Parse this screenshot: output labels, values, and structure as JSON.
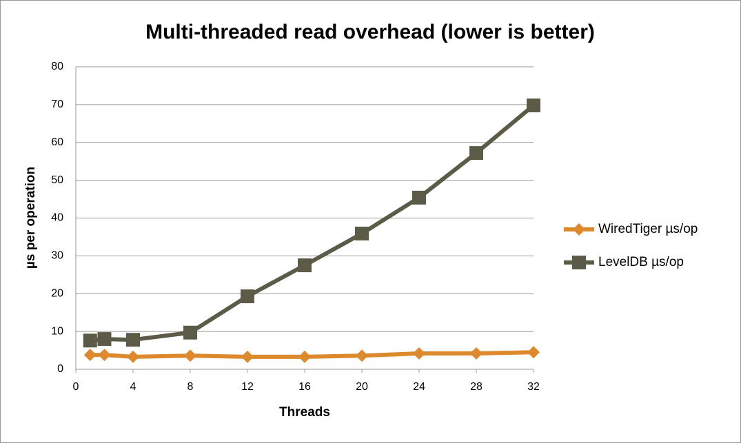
{
  "chart_data": {
    "type": "line",
    "title": "Multi-threaded read overhead (lower is better)",
    "x_label": "Threads",
    "y_label": "µs per operation",
    "x": [
      1,
      2,
      4,
      8,
      12,
      16,
      20,
      24,
      28,
      32
    ],
    "series": [
      {
        "name": "WiredTiger µs/op",
        "color": "#dd8a2e",
        "marker": "diamond",
        "values": [
          3.8,
          3.8,
          3.3,
          3.6,
          3.3,
          3.3,
          3.6,
          4.2,
          4.2,
          4.5
        ]
      },
      {
        "name": "LevelDB µs/op",
        "color": "#5b5b48",
        "marker": "square",
        "values": [
          7.6,
          8,
          7.8,
          9.7,
          19.3,
          27.5,
          35.9,
          45.4,
          57.2,
          69.8
        ]
      }
    ],
    "xlim": [
      0,
      32
    ],
    "xticks": [
      0,
      4,
      8,
      12,
      16,
      20,
      24,
      28,
      32
    ],
    "ylim": [
      0,
      80
    ],
    "yticks": [
      0,
      10,
      20,
      30,
      40,
      50,
      60,
      70,
      80
    ],
    "grid": true,
    "legend": "right"
  }
}
